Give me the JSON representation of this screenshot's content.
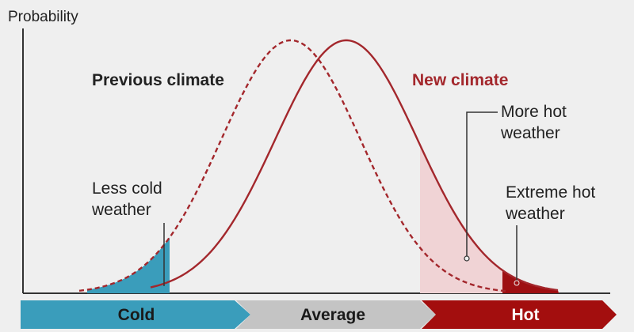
{
  "axis": {
    "ylabel": "Probability"
  },
  "curves": {
    "previous_label": "Previous climate",
    "new_label": "New climate"
  },
  "annotations": {
    "less_cold": [
      "Less cold",
      "weather"
    ],
    "more_hot": [
      "More hot",
      "weather"
    ],
    "extreme_hot": [
      "Extreme hot",
      "weather"
    ]
  },
  "bar": {
    "cold": "Cold",
    "average": "Average",
    "hot": "Hot"
  },
  "colors": {
    "background": "#efefef",
    "previous_curve": "#a3272c",
    "new_curve": "#a3272c",
    "new_label": "#a3272c",
    "text": "#222222",
    "cold": "#3a9dbb",
    "average": "#c4c4c4",
    "hot": "#a30e0e",
    "more_hot_shade": "#f0d3d5",
    "extreme_shade": "#9e0f12"
  }
}
